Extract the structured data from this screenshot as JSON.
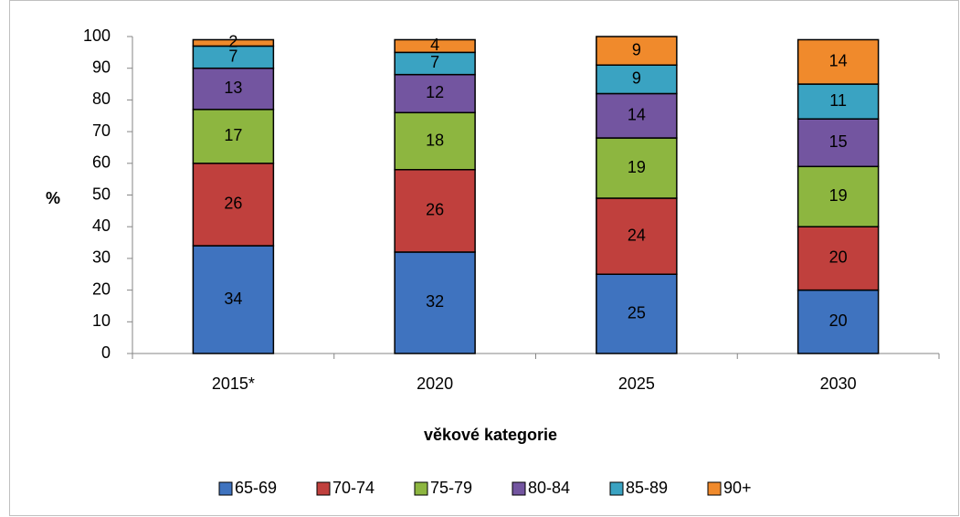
{
  "chart_data": {
    "type": "stacked_bar",
    "categories": [
      "2015*",
      "2020",
      "2025",
      "2030"
    ],
    "series": [
      {
        "name": "65-69",
        "color": "#3f73bf",
        "values": [
          34,
          32,
          25,
          20
        ]
      },
      {
        "name": "70-74",
        "color": "#c0403d",
        "values": [
          26,
          26,
          24,
          20
        ]
      },
      {
        "name": "75-79",
        "color": "#8db640",
        "values": [
          17,
          18,
          19,
          19
        ]
      },
      {
        "name": "80-84",
        "color": "#7355a0",
        "values": [
          13,
          12,
          14,
          15
        ]
      },
      {
        "name": "85-89",
        "color": "#3aa3c2",
        "values": [
          7,
          7,
          9,
          11
        ]
      },
      {
        "name": "90+",
        "color": "#f08a2c",
        "values": [
          2,
          4,
          9,
          14
        ]
      }
    ],
    "ylabel": "%",
    "xlabel": "věkové kategorie",
    "ylim": [
      0,
      100
    ],
    "yticks": [
      0,
      10,
      20,
      30,
      40,
      50,
      60,
      70,
      80,
      90,
      100
    ],
    "legend": "bottom"
  }
}
